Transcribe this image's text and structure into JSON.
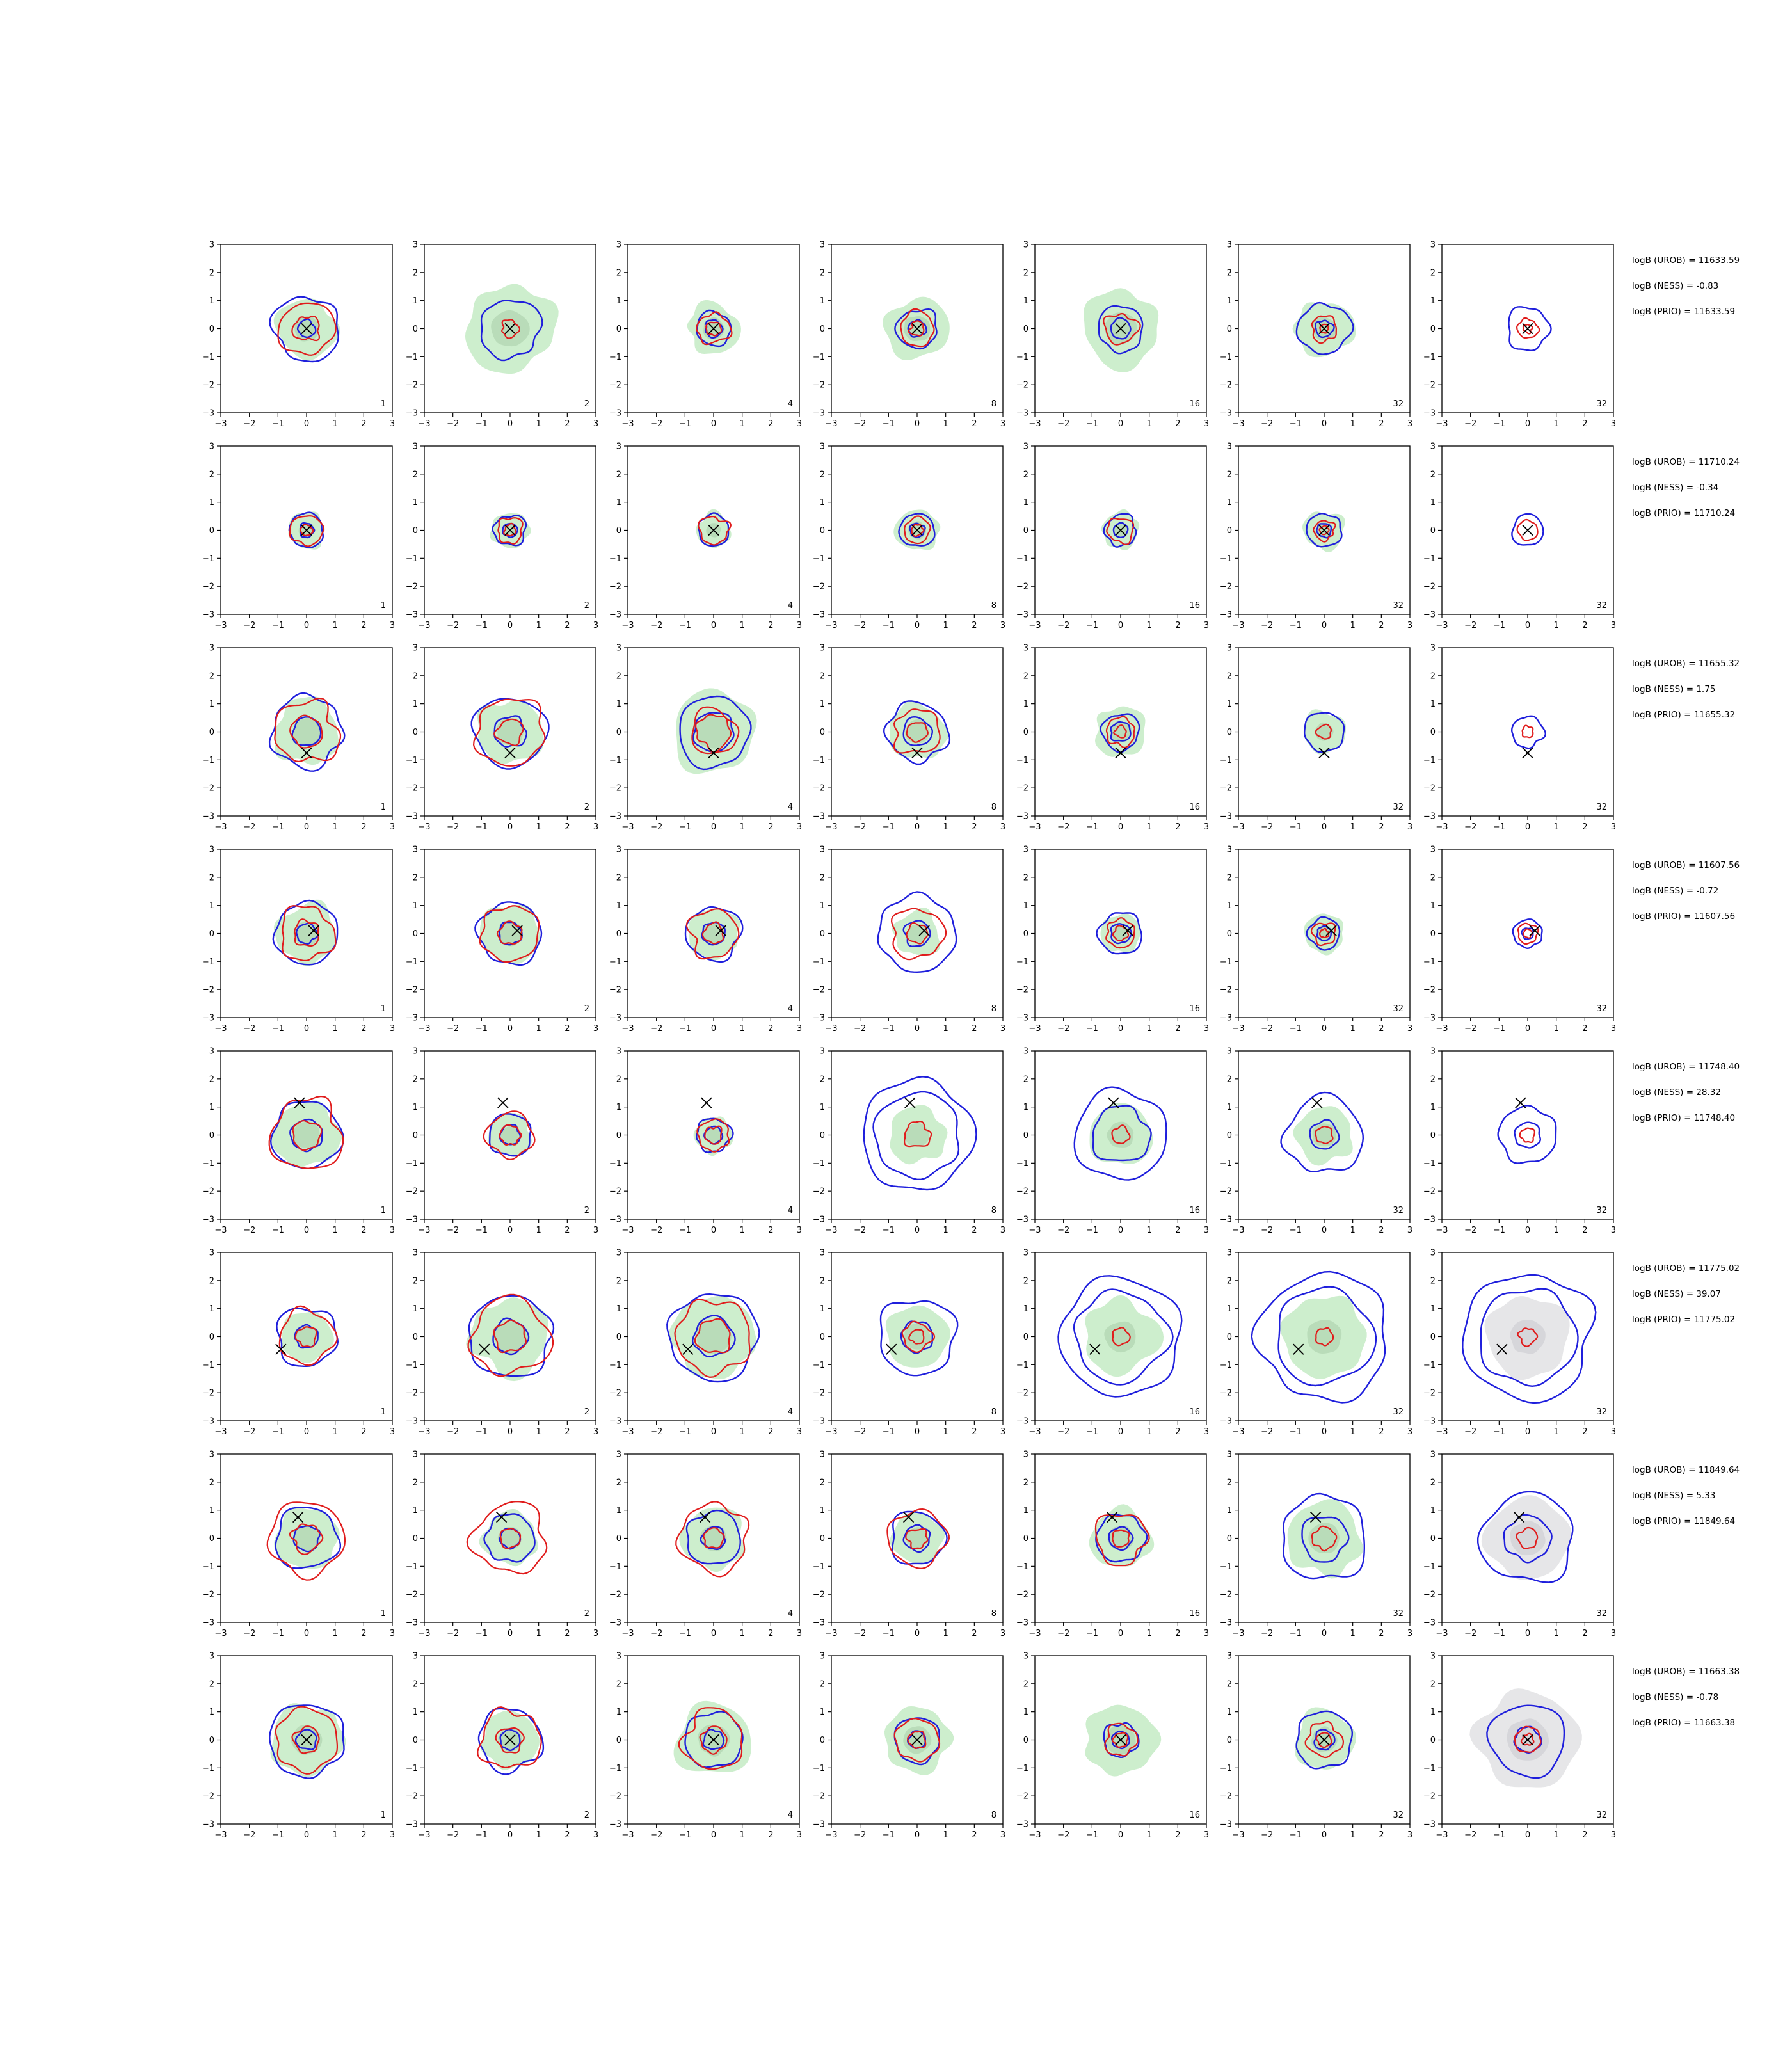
{
  "chart_data": {
    "type": "contour-grid",
    "rows": 8,
    "columns": 7,
    "xlim": [
      -3,
      3
    ],
    "ylim": [
      -3,
      3
    ],
    "ticks": [
      -3,
      -2,
      -1,
      0,
      1,
      2,
      3
    ],
    "tick_labels": [
      "−3",
      "−2",
      "−1",
      "0",
      "1",
      "2",
      "3"
    ],
    "colors": {
      "fill_green": "#cdeecd",
      "fill_green_inner": "#b9dcb9",
      "fill_grey": "#e6e6e8",
      "fill_grey_inner": "#d6d6da",
      "contour_blue": "#1f1fdc",
      "contour_red": "#e01c1c",
      "marker": "#000000"
    },
    "panels": [
      {
        "counts": [
          "1",
          "2",
          "4",
          "8",
          "16",
          "32",
          "32"
        ],
        "truth": [
          0,
          0
        ],
        "outer_size": [
          1.05,
          1.55,
          0.9,
          1.1,
          1.35,
          1.0,
          0.0
        ],
        "blue": [
          [
            1.15,
            0.3
          ],
          [
            1.05
          ],
          [
            0.6,
            0.3
          ],
          [
            0.7,
            0.3
          ],
          [
            0.8,
            0.35
          ],
          [
            0.9,
            0.3
          ],
          [
            0.75
          ]
        ],
        "red": [
          [
            0.95,
            0.45
          ],
          [
            0.3
          ],
          [
            0.55,
            0.25
          ],
          [
            0.6,
            0.25
          ],
          [
            0.55
          ],
          [
            0.45,
            0.15
          ],
          [
            0.35,
            0.15
          ]
        ],
        "grey_last": false,
        "annotations": [
          "logB (UROB) = 11633.59",
          "logB (NESS) = -0.83",
          "logB (PRIO) = 11633.59"
        ]
      },
      {
        "counts": [
          "1",
          "2",
          "4",
          "8",
          "16",
          "32",
          "32"
        ],
        "truth": [
          0,
          0
        ],
        "outer_size": [
          0.65,
          0.65,
          0.6,
          0.75,
          0.65,
          0.7,
          0.0
        ],
        "blue": [
          [
            0.6,
            0.25
          ],
          [
            0.55,
            0.25
          ],
          [
            0.55
          ],
          [
            0.6,
            0.25
          ],
          [
            0.55,
            0.25
          ],
          [
            0.6,
            0.25
          ],
          [
            0.55
          ]
        ],
        "red": [
          [
            0.55,
            0.2
          ],
          [
            0.45,
            0.2
          ],
          [
            0.5
          ],
          [
            0.45,
            0.2
          ],
          [
            0.45
          ],
          [
            0.35,
            0.15
          ],
          [
            0.35
          ]
        ],
        "grey_last": false,
        "annotations": [
          "logB (UROB) = 11710.24",
          "logB (NESS) = -0.34",
          "logB (PRIO) = 11710.24"
        ]
      },
      {
        "counts": [
          "1",
          "2",
          "4",
          "8",
          "16",
          "32",
          "32"
        ],
        "truth": [
          0,
          -0.75
        ],
        "outer_size": [
          1.15,
          1.15,
          1.45,
          1.0,
          0.9,
          0.75,
          0.0
        ],
        "blue": [
          [
            1.25,
            0.5
          ],
          [
            1.25,
            0.55
          ],
          [
            1.25,
            0.7
          ],
          [
            1.05,
            0.5
          ],
          [
            0.65,
            0.35
          ],
          [
            0.7
          ],
          [
            0.55
          ]
        ],
        "red": [
          [
            1.1,
            0.55
          ],
          [
            1.2,
            0.45
          ],
          [
            0.8,
            0.6
          ],
          [
            0.8,
            0.35
          ],
          [
            0.5,
            0.2
          ],
          [
            0.25
          ],
          [
            0.2
          ]
        ],
        "grey_last": false,
        "annotations": [
          "logB (UROB) = 11655.32",
          "logB (NESS) = 1.75",
          "logB (PRIO) = 11655.32"
        ]
      },
      {
        "counts": [
          "1",
          "2",
          "4",
          "8",
          "16",
          "32",
          "32"
        ],
        "truth": [
          0.25,
          0.1
        ],
        "outer_size": [
          1.05,
          1.05,
          0.9,
          0.8,
          0.7,
          0.7,
          0.0
        ],
        "blue": [
          [
            1.1,
            0.35
          ],
          [
            1.1,
            0.4
          ],
          [
            0.95,
            0.4
          ],
          [
            1.35,
            0.45
          ],
          [
            0.75,
            0.35
          ],
          [
            0.55,
            0.25
          ],
          [
            0.5,
            0.2
          ]
        ],
        "red": [
          [
            0.95,
            0.45
          ],
          [
            1.0,
            0.4
          ],
          [
            0.85,
            0.35
          ],
          [
            0.9,
            0.35
          ],
          [
            0.5,
            0.25
          ],
          [
            0.4,
            0.15
          ],
          [
            0.35,
            0.15
          ]
        ],
        "grey_last": true,
        "annotations": [
          "logB (UROB) = 11607.56",
          "logB (NESS) = -0.72",
          "logB (PRIO) = 11607.56"
        ]
      },
      {
        "counts": [
          "1",
          "2",
          "4",
          "8",
          "16",
          "32",
          "32"
        ],
        "truth": [
          -0.25,
          1.15
        ],
        "outer_size": [
          1.15,
          0.75,
          0.65,
          1.0,
          1.1,
          1.0,
          0.0
        ],
        "blue": [
          [
            1.2,
            0.55
          ],
          [
            0.75,
            0.35
          ],
          [
            0.6,
            0.3
          ],
          [
            1.95,
            1.5
          ],
          [
            1.6,
            1.0
          ],
          [
            1.35,
            0.5
          ],
          [
            1.0,
            0.45
          ]
        ],
        "red": [
          [
            1.25,
            0.5
          ],
          [
            0.8,
            0.35
          ],
          [
            0.55,
            0.3
          ],
          [
            0.45
          ],
          [
            0.3
          ],
          [
            0.3
          ],
          [
            0.25
          ]
        ],
        "grey_last": true,
        "annotations": [
          "logB (UROB) = 11748.40",
          "logB (NESS) = 28.32",
          "logB (PRIO) = 11748.40"
        ]
      },
      {
        "counts": [
          "1",
          "2",
          "4",
          "8",
          "16",
          "32",
          "32"
        ],
        "truth": [
          -0.9,
          -0.45
        ],
        "outer_size": [
          0.9,
          1.35,
          1.45,
          1.1,
          1.3,
          1.45,
          1.45
        ],
        "blue": [
          [
            1.05,
            0.4
          ],
          [
            1.45,
            0.6
          ],
          [
            1.55,
            0.7
          ],
          [
            1.35,
            0.55
          ],
          [
            2.1,
            1.6
          ],
          [
            2.25,
            1.7
          ],
          [
            2.25,
            1.7
          ]
        ],
        "red": [
          [
            0.95,
            0.35
          ],
          [
            1.35,
            0.55
          ],
          [
            1.3,
            0.6
          ],
          [
            0.5,
            0.25
          ],
          [
            0.3
          ],
          [
            0.3
          ],
          [
            0.3
          ]
        ],
        "grey_last": true,
        "annotations": [
          "logB (UROB) = 11775.02",
          "logB (NESS) = 39.07",
          "logB (PRIO) = 11775.02"
        ]
      },
      {
        "counts": [
          "1",
          "2",
          "4",
          "8",
          "16",
          "32",
          "32"
        ],
        "truth": [
          -0.3,
          0.75
        ],
        "outer_size": [
          1.1,
          0.95,
          1.1,
          0.9,
          1.05,
          1.3,
          1.45
        ],
        "blue": [
          [
            1.1,
            0.45
          ],
          [
            0.85,
            0.35
          ],
          [
            0.95,
            0.4
          ],
          [
            0.95,
            0.45
          ],
          [
            0.85,
            0.4
          ],
          [
            1.5,
            0.8
          ],
          [
            1.6,
            0.8
          ]
        ],
        "red": [
          [
            1.3,
            0.5
          ],
          [
            1.25,
            0.35
          ],
          [
            1.2,
            0.35
          ],
          [
            1.0,
            0.35
          ],
          [
            0.9,
            0.3
          ],
          [
            0.4
          ],
          [
            0.35
          ]
        ],
        "grey_last": true,
        "annotations": [
          "logB (UROB) = 11849.64",
          "logB (NESS) = 5.33",
          "logB (PRIO) = 11849.64"
        ]
      },
      {
        "counts": [
          "1",
          "2",
          "4",
          "8",
          "16",
          "32",
          "32"
        ],
        "truth": [
          0,
          0
        ],
        "outer_size": [
          1.25,
          1.0,
          1.3,
          1.15,
          1.25,
          1.05,
          1.75
        ],
        "blue": [
          [
            1.3,
            0.35
          ],
          [
            1.1,
            0.35
          ],
          [
            1.0,
            0.35
          ],
          [
            0.8,
            0.3
          ],
          [
            0.6,
            0.3
          ],
          [
            1.0,
            0.35
          ],
          [
            1.3,
            0.45
          ]
        ],
        "red": [
          [
            1.1,
            0.45
          ],
          [
            1.05,
            0.45
          ],
          [
            1.05,
            0.45
          ],
          [
            0.75,
            0.3
          ],
          [
            0.55,
            0.25
          ],
          [
            0.6,
            0.25
          ],
          [
            0.45,
            0.2
          ]
        ],
        "grey_last": true,
        "annotations": [
          "logB (UROB) = 11663.38",
          "logB (NESS) = -0.78",
          "logB (PRIO) = 11663.38"
        ]
      }
    ]
  }
}
